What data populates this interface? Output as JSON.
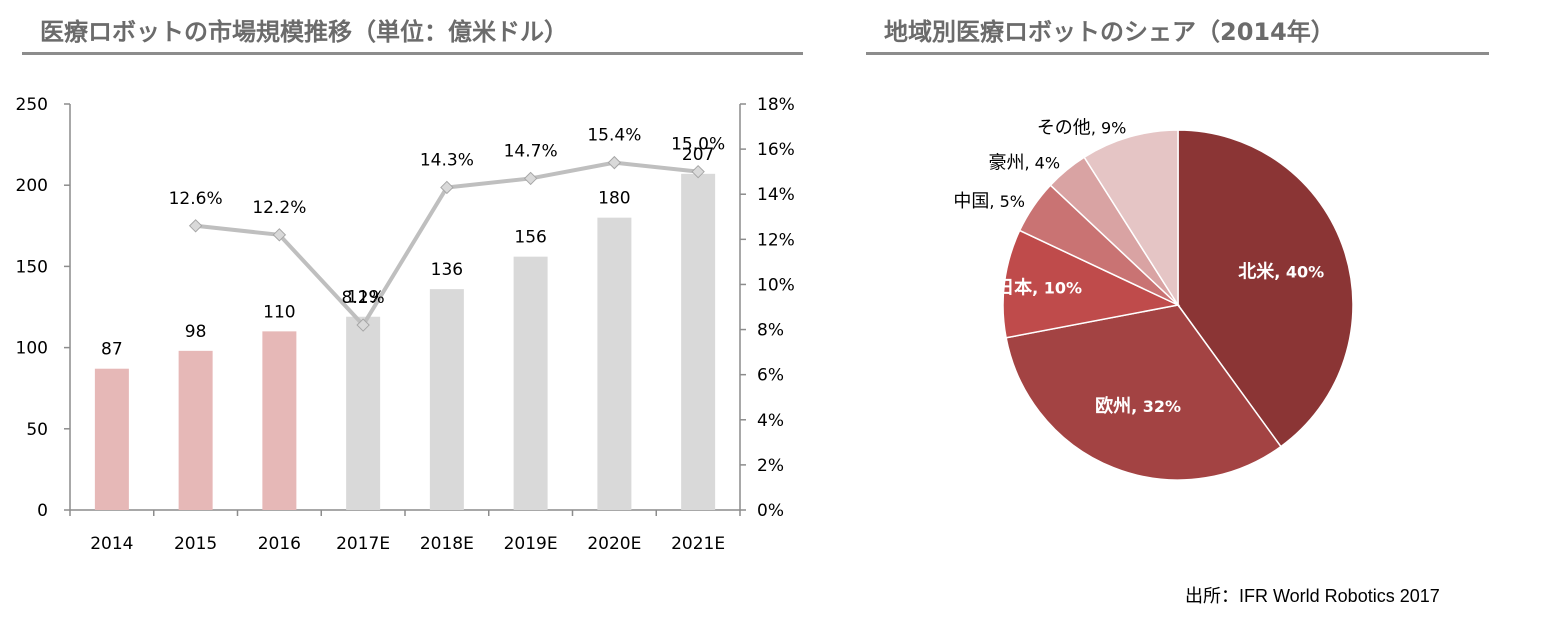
{
  "left_title": "医療ロボットの市場規模推移（単位：億米ドル）",
  "right_title": "地域別医療ロボットのシェア（2014年）",
  "source_label": "出所：",
  "source_text": "IFR World Robotics 2017",
  "colors": {
    "bar_actual": "#e6b8b7",
    "bar_forecast": "#d9d9d9",
    "line": "#bfbfbf",
    "title": "#6b6b6b",
    "axis": "#8c8c8c"
  },
  "chart_data": [
    {
      "type": "bar",
      "title": "医療ロボットの市場規模推移（単位：億米ドル）",
      "categories": [
        "2014",
        "2015",
        "2016",
        "2017E",
        "2018E",
        "2019E",
        "2020E",
        "2021E"
      ],
      "values": [
        87,
        98,
        110,
        119,
        136,
        156,
        180,
        207
      ],
      "value_labels": [
        "87",
        "98",
        "110",
        "119",
        "136",
        "156",
        "180",
        "207"
      ],
      "actual_count": 3,
      "ylim": [
        0,
        250
      ],
      "yticks": [
        "0",
        "50",
        "100",
        "150",
        "200",
        "250"
      ],
      "ytick_values": [
        0,
        50,
        100,
        150,
        200,
        250
      ],
      "secondary": {
        "type": "line",
        "x": [
          "2015",
          "2016",
          "2017E",
          "2018E",
          "2019E",
          "2020E",
          "2021E"
        ],
        "values": [
          12.6,
          12.2,
          8.2,
          14.3,
          14.7,
          15.4,
          15.0
        ],
        "value_labels": [
          "12.6%",
          "12.2%",
          "8.2%",
          "14.3%",
          "14.7%",
          "15.4%",
          "15.0%"
        ],
        "ylim": [
          0,
          18
        ],
        "yticks": [
          "0%",
          "2%",
          "4%",
          "6%",
          "8%",
          "10%",
          "12%",
          "14%",
          "16%",
          "18%"
        ],
        "ytick_values": [
          0,
          2,
          4,
          6,
          8,
          10,
          12,
          14,
          16,
          18
        ]
      },
      "grid": false,
      "legend": "none"
    },
    {
      "type": "pie",
      "title": "地域別医療ロボットのシェア（2014年）",
      "slices": [
        {
          "label": "北米",
          "value": 40,
          "text": "40%",
          "color": "#8b3535"
        },
        {
          "label": "欧州",
          "value": 32,
          "text": "32%",
          "color": "#a34343"
        },
        {
          "label": "日本",
          "value": 10,
          "text": "10%",
          "color": "#bf4b4b"
        },
        {
          "label": "中国",
          "value": 5,
          "text": "5%",
          "color": "#c97373"
        },
        {
          "label": "豪州",
          "value": 4,
          "text": "4%",
          "color": "#d9a3a3"
        },
        {
          "label": "その他",
          "value": 9,
          "text": "9%",
          "color": "#e5c5c5"
        }
      ],
      "legend": "none"
    }
  ]
}
